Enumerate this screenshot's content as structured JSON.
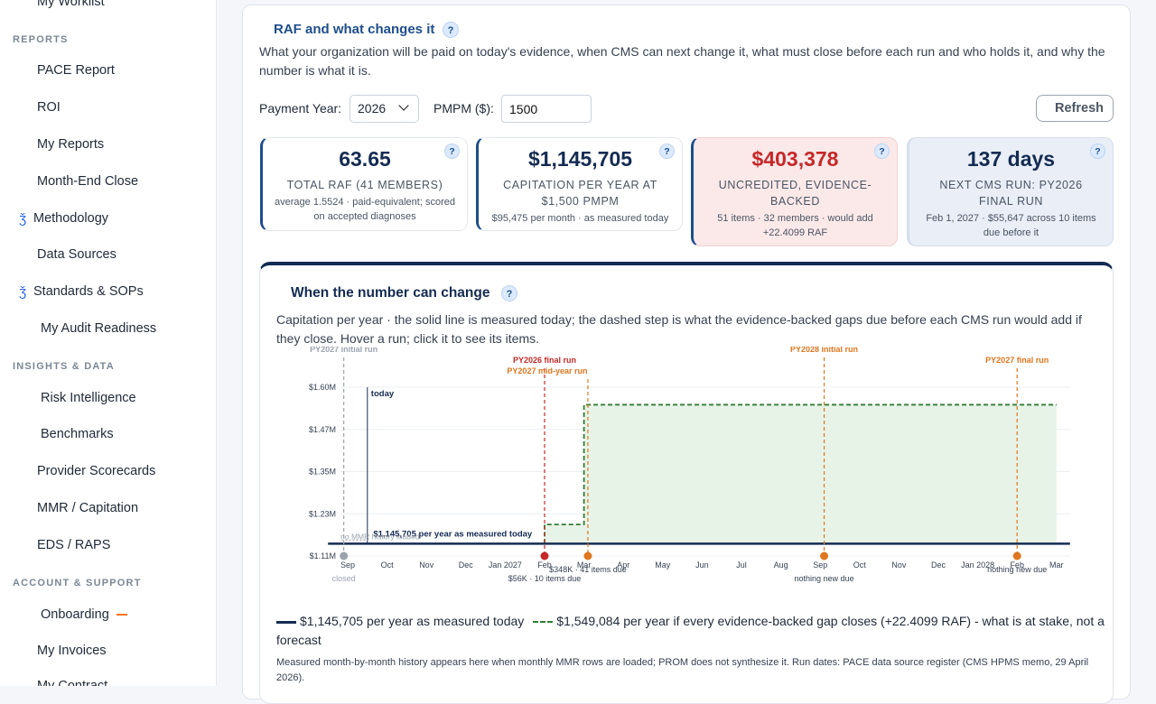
{
  "sidebar": {
    "items_top": [
      {
        "label": "My Worklist"
      }
    ],
    "sections": [
      {
        "title": "REPORTS"
      },
      {
        "title": "INSIGHTS & DATA"
      },
      {
        "title": "ACCOUNT & SUPPORT"
      }
    ],
    "reports": [
      "PACE Report",
      "ROI",
      "My Reports",
      "Month-End Close",
      "Methodology",
      "Data Sources",
      "Standards & SOPs",
      "My Audit Readiness"
    ],
    "insights": [
      "Risk Intelligence",
      "Benchmarks",
      "Provider Scorecards",
      "MMR / Capitation",
      "EDS / RAPS"
    ],
    "account": [
      "Onboarding",
      "My Invoices",
      "My Contract"
    ],
    "icon_glyph": "ǯ",
    "icon_names": {
      "methodology": "book-icon",
      "standards": "book-icon"
    }
  },
  "panel": {
    "title": "RAF and what changes it",
    "help": "?",
    "description": "What your organization will be paid on today's evidence, when CMS can next change it, what must close before each run and who holds it, and why the number is what it is."
  },
  "controls": {
    "year_label": "Payment Year:",
    "year_value": "2026",
    "pmpm_label": "PMPM ($):",
    "pmpm_value": "1500",
    "refresh_label": "Refresh"
  },
  "kpis": [
    {
      "value": "63.65",
      "label": "TOTAL RAF (41 MEMBERS)",
      "sub": "average 1.5524 · paid-equivalent; scored on accepted diagnoses"
    },
    {
      "value": "$1,145,705",
      "label": "CAPITATION PER YEAR AT $1,500 PMPM",
      "sub": "$95,475 per month · as measured today"
    },
    {
      "value": "$403,378",
      "label": "UNCREDITED, EVIDENCE-BACKED",
      "sub": "51 items · 32 members · would add +22.4099 RAF"
    },
    {
      "value": "137 days",
      "label": "NEXT CMS RUN: PY2026 FINAL RUN",
      "sub": "Feb 1, 2027 · $55,647 across 10 items due before it"
    }
  ],
  "chart_section": {
    "title": "When the number can change",
    "help": "?",
    "description": "Capitation per year · the solid line is measured today; the dashed step is what the evidence-backed gaps due before each CMS run would add if they close. Hover a run; click it to see its items.",
    "legend_solid": "$1,145,705 per year as measured today",
    "legend_dashed": "$1,549,084 per year if every evidence-backed gap closes (+22.4099 RAF) - what is at stake, not a forecast",
    "footnote": "Measured month-by-month history appears here when monthly MMR rows are loaded; PROM does not synthesize it. Run dates: PACE data source register (CMS HPMS memo, 29 April 2026)."
  },
  "chart_data": {
    "type": "line",
    "y_ticks": [
      "$1.11M",
      "$1.23M",
      "$1.35M",
      "$1.47M",
      "$1.60M"
    ],
    "ylim": [
      1110000,
      1600000
    ],
    "x_ticks": [
      "Sep",
      "Oct",
      "Nov",
      "Dec",
      "Jan 2027",
      "Feb",
      "Mar",
      "Apr",
      "May",
      "Jun",
      "Jul",
      "Aug",
      "Sep",
      "Oct",
      "Nov",
      "Dec",
      "Jan 2028",
      "Feb",
      "Mar"
    ],
    "today_label": "today",
    "measured_label": "$1,145,705 per year as measured today",
    "no_history_label": "no MMR history loaded",
    "closed_label": "closed",
    "series": [
      {
        "name": "$1,145,705 per year as measured today",
        "style": "solid",
        "color": "#142b52",
        "points": [
          [
            "Sep 2026",
            1145705
          ],
          [
            "Mar 2028",
            1145705
          ]
        ]
      },
      {
        "name": "$1,549,084 per year if every evidence-backed gap closes (+22.4099 RAF) - what is at stake, not a forecast",
        "style": "dashed",
        "color": "#2e7d32",
        "points": [
          [
            "Feb 2027",
            1145705
          ],
          [
            "Feb 2027",
            1201352
          ],
          [
            "Mar 2027",
            1201352
          ],
          [
            "Mar 2027",
            1549084
          ],
          [
            "Mar 2028",
            1549084
          ]
        ]
      }
    ],
    "runs": [
      {
        "name": "PY2027 initial run",
        "month_index": -0.1,
        "status": "closed",
        "color": "#9ca3af",
        "due": ""
      },
      {
        "name": "PY2026 final run",
        "month_index": 5.0,
        "status": "next",
        "color": "#c62828",
        "due": "$56K · 10 items due"
      },
      {
        "name": "PY2027 mid-year run",
        "month_index": 6.1,
        "status": "upcoming",
        "color": "#e0761f",
        "due": "$348K · 41 items due"
      },
      {
        "name": "PY2028 initial run",
        "month_index": 12.1,
        "status": "upcoming",
        "color": "#e0761f",
        "due": "nothing new due"
      },
      {
        "name": "PY2027 final run",
        "month_index": 17.0,
        "status": "upcoming",
        "color": "#e0761f",
        "due": "nothing new due"
      }
    ]
  }
}
